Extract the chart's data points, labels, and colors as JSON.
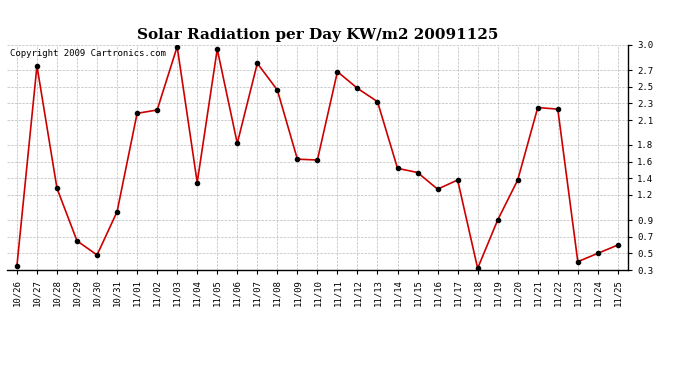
{
  "title": "Solar Radiation per Day KW/m2 20091125",
  "copyright_text": "Copyright 2009 Cartronics.com",
  "dates": [
    "10/26",
    "10/27",
    "10/28",
    "10/29",
    "10/30",
    "10/31",
    "11/01",
    "11/02",
    "11/03",
    "11/04",
    "11/05",
    "11/06",
    "11/07",
    "11/08",
    "11/09",
    "11/10",
    "11/11",
    "11/12",
    "11/13",
    "11/14",
    "11/15",
    "11/16",
    "11/17",
    "11/18",
    "11/19",
    "11/20",
    "11/21",
    "11/22",
    "11/23",
    "11/24",
    "11/25"
  ],
  "values": [
    0.35,
    2.75,
    1.28,
    0.65,
    0.48,
    1.0,
    2.18,
    2.22,
    2.98,
    1.35,
    2.95,
    1.82,
    2.78,
    2.46,
    1.63,
    1.62,
    2.68,
    2.48,
    2.32,
    1.52,
    1.47,
    1.27,
    1.38,
    0.32,
    0.9,
    1.38,
    2.25,
    2.23,
    0.4,
    0.5,
    0.6
  ],
  "line_color": "#cc0000",
  "marker": "o",
  "marker_color": "#000000",
  "marker_size": 3,
  "ylim_min": 0.3,
  "ylim_max": 3.0,
  "yticks": [
    0.3,
    0.5,
    0.7,
    0.9,
    1.2,
    1.4,
    1.6,
    1.8,
    2.1,
    2.3,
    2.5,
    2.7,
    3.0
  ],
  "ytick_labels": [
    "0.3",
    "0.5",
    "0.7",
    "0.9",
    "1.2",
    "1.4",
    "1.6",
    "1.8",
    "2.1",
    "2.3",
    "2.5",
    "2.7",
    "3.0"
  ],
  "background_color": "#ffffff",
  "grid_color": "#bbbbbb",
  "title_fontsize": 11,
  "tick_fontsize": 6.5,
  "copyright_fontsize": 6.5
}
